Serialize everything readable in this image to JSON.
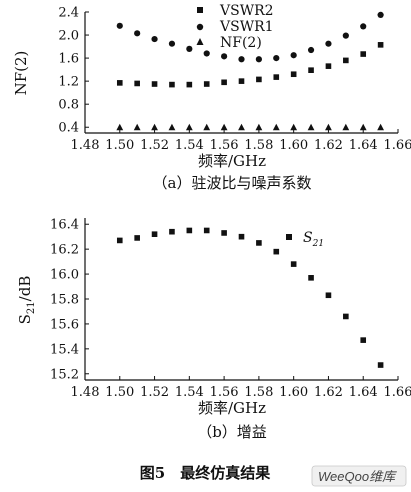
{
  "figure_caption": "图5　最终仿真结果",
  "watermark": "WeeQoo维库",
  "chart_data": [
    {
      "type": "scatter",
      "caption": "（a）驻波比与噪声系数",
      "xlabel": "频率/GHz",
      "ylabel": "NF(2)",
      "xlim": [
        1.48,
        1.66
      ],
      "ylim": [
        0.3,
        2.4
      ],
      "xticks": [
        "1.48",
        "1.50",
        "1.52",
        "1.54",
        "1.56",
        "1.58",
        "1.60",
        "1.62",
        "1.64",
        "1.66"
      ],
      "yticks": [
        "0.4",
        "0.8",
        "1.2",
        "1.6",
        "2.0",
        "2.4"
      ],
      "ytick_values": [
        0.4,
        0.8,
        1.2,
        1.6,
        2.0,
        2.4
      ],
      "grid": false,
      "legend_position": "top-right",
      "series": [
        {
          "name": "VSWR2",
          "marker": "square",
          "x": [
            1.5,
            1.51,
            1.52,
            1.53,
            1.54,
            1.55,
            1.56,
            1.57,
            1.58,
            1.59,
            1.6,
            1.61,
            1.62,
            1.63,
            1.64,
            1.65
          ],
          "y": [
            1.17,
            1.16,
            1.15,
            1.14,
            1.14,
            1.15,
            1.18,
            1.2,
            1.23,
            1.27,
            1.32,
            1.39,
            1.46,
            1.56,
            1.67,
            1.83
          ]
        },
        {
          "name": "VSWR1",
          "marker": "circle",
          "x": [
            1.5,
            1.51,
            1.52,
            1.53,
            1.54,
            1.55,
            1.56,
            1.57,
            1.58,
            1.59,
            1.6,
            1.61,
            1.62,
            1.63,
            1.64,
            1.65
          ],
          "y": [
            2.16,
            2.03,
            1.93,
            1.85,
            1.76,
            1.68,
            1.63,
            1.58,
            1.58,
            1.6,
            1.65,
            1.74,
            1.85,
            1.99,
            2.15,
            2.35
          ]
        },
        {
          "name": "NF(2)",
          "marker": "triangle",
          "x": [
            1.5,
            1.51,
            1.52,
            1.53,
            1.54,
            1.55,
            1.56,
            1.57,
            1.58,
            1.59,
            1.6,
            1.61,
            1.62,
            1.63,
            1.64,
            1.65
          ],
          "y": [
            0.4,
            0.4,
            0.4,
            0.4,
            0.4,
            0.4,
            0.4,
            0.4,
            0.4,
            0.4,
            0.4,
            0.4,
            0.4,
            0.4,
            0.4,
            0.4
          ]
        }
      ]
    },
    {
      "type": "scatter",
      "caption": "（b）增益",
      "xlabel": "频率/GHz",
      "ylabel": "S21/dB",
      "xlim": [
        1.48,
        1.66
      ],
      "ylim": [
        15.15,
        16.45
      ],
      "xticks": [
        "1.48",
        "1.50",
        "1.52",
        "1.54",
        "1.56",
        "1.58",
        "1.60",
        "1.62",
        "1.64",
        "1.66"
      ],
      "yticks": [
        "15.2",
        "15.4",
        "15.6",
        "15.8",
        "16.0",
        "16.2",
        "16.4"
      ],
      "ytick_values": [
        15.2,
        15.4,
        15.6,
        15.8,
        16.0,
        16.2,
        16.4
      ],
      "grid": false,
      "legend_position": "top-right",
      "series": [
        {
          "name": "S21",
          "marker": "square",
          "x": [
            1.5,
            1.51,
            1.52,
            1.53,
            1.54,
            1.55,
            1.56,
            1.57,
            1.58,
            1.59,
            1.6,
            1.61,
            1.62,
            1.63,
            1.64,
            1.65
          ],
          "y": [
            16.27,
            16.29,
            16.32,
            16.34,
            16.35,
            16.35,
            16.33,
            16.3,
            16.25,
            16.18,
            16.08,
            15.97,
            15.83,
            15.66,
            15.47,
            15.27
          ]
        }
      ]
    }
  ]
}
